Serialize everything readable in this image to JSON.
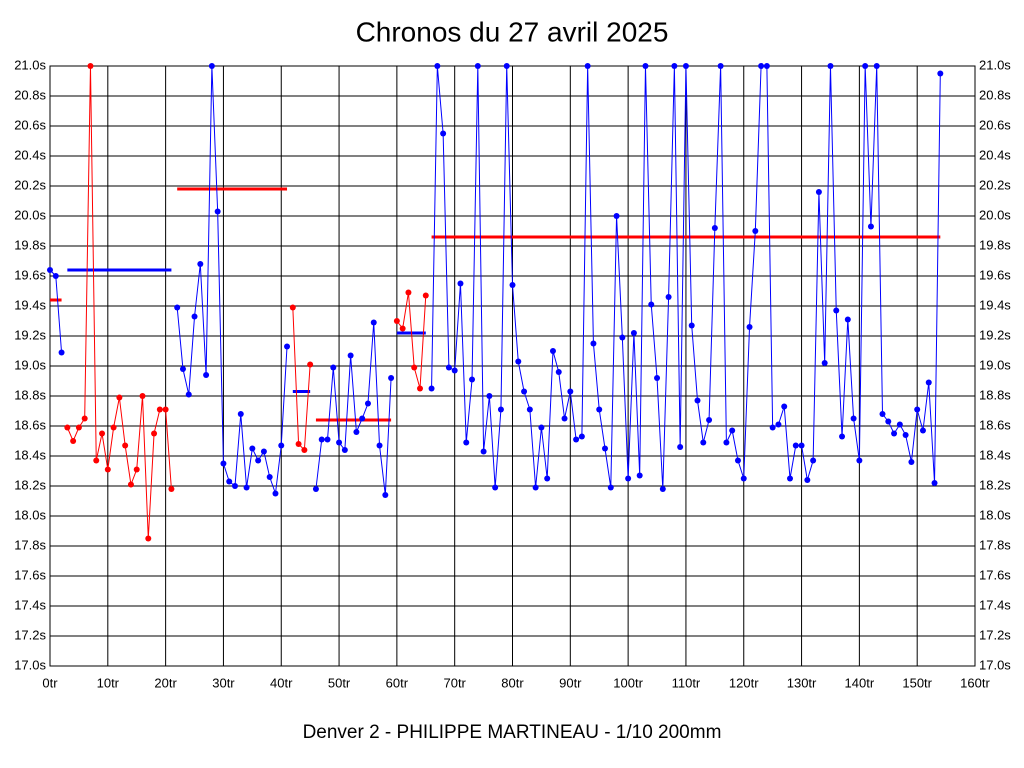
{
  "chart_data": {
    "type": "line",
    "title": "Chronos du 27 avril 2025",
    "xlabel": "Denver 2 - PHILIPPE MARTINEAU - 1/10 200mm",
    "xlim": [
      0,
      160
    ],
    "ylim": [
      17.0,
      21.0
    ],
    "grid": true,
    "xticks": [
      {
        "value": 0,
        "label": "0tr"
      },
      {
        "value": 10,
        "label": "10tr"
      },
      {
        "value": 20,
        "label": "20tr"
      },
      {
        "value": 30,
        "label": "30tr"
      },
      {
        "value": 40,
        "label": "40tr"
      },
      {
        "value": 50,
        "label": "50tr"
      },
      {
        "value": 60,
        "label": "60tr"
      },
      {
        "value": 70,
        "label": "70tr"
      },
      {
        "value": 80,
        "label": "80tr"
      },
      {
        "value": 90,
        "label": "90tr"
      },
      {
        "value": 100,
        "label": "100tr"
      },
      {
        "value": 110,
        "label": "110tr"
      },
      {
        "value": 120,
        "label": "120tr"
      },
      {
        "value": 130,
        "label": "130tr"
      },
      {
        "value": 140,
        "label": "140tr"
      },
      {
        "value": 150,
        "label": "150tr"
      },
      {
        "value": 160,
        "label": "160tr"
      }
    ],
    "yticks": [
      {
        "value": 17.0,
        "label": "17.0s"
      },
      {
        "value": 17.2,
        "label": "17.2s"
      },
      {
        "value": 17.4,
        "label": "17.4s"
      },
      {
        "value": 17.6,
        "label": "17.6s"
      },
      {
        "value": 17.8,
        "label": "17.8s"
      },
      {
        "value": 18.0,
        "label": "18.0s"
      },
      {
        "value": 18.2,
        "label": "18.2s"
      },
      {
        "value": 18.4,
        "label": "18.4s"
      },
      {
        "value": 18.6,
        "label": "18.6s"
      },
      {
        "value": 18.8,
        "label": "18.8s"
      },
      {
        "value": 19.0,
        "label": "19.0s"
      },
      {
        "value": 19.2,
        "label": "19.2s"
      },
      {
        "value": 19.4,
        "label": "19.4s"
      },
      {
        "value": 19.6,
        "label": "19.6s"
      },
      {
        "value": 19.8,
        "label": "19.8s"
      },
      {
        "value": 20.0,
        "label": "20.0s"
      },
      {
        "value": 20.2,
        "label": "20.2s"
      },
      {
        "value": 20.4,
        "label": "20.4s"
      },
      {
        "value": 20.6,
        "label": "20.6s"
      },
      {
        "value": 20.8,
        "label": "20.8s"
      },
      {
        "value": 21.0,
        "label": "21.0s"
      }
    ],
    "series": [
      {
        "color": "#0000ff",
        "x": [
          0,
          1,
          2
        ],
        "values": [
          19.64,
          19.6,
          19.09
        ]
      },
      {
        "color": "#ff0000",
        "x": [
          3,
          4,
          5,
          6,
          7,
          8,
          9,
          10,
          11,
          12,
          13,
          14,
          15,
          16,
          17,
          18,
          19,
          20,
          21
        ],
        "values": [
          18.59,
          18.5,
          18.59,
          18.65,
          21.0,
          18.37,
          18.55,
          18.31,
          18.59,
          18.79,
          18.47,
          18.21,
          18.31,
          18.8,
          17.85,
          18.55,
          18.71,
          18.71,
          18.18
        ]
      },
      {
        "color": "#0000ff",
        "x": [
          22,
          23,
          24,
          25,
          26,
          27,
          28,
          29,
          30,
          31,
          32,
          33,
          34,
          35,
          36,
          37,
          38,
          39,
          40,
          41
        ],
        "values": [
          19.39,
          18.98,
          18.81,
          19.33,
          19.68,
          18.94,
          21.0,
          20.03,
          18.35,
          18.23,
          18.2,
          18.68,
          18.19,
          18.45,
          18.37,
          18.43,
          18.26,
          18.15,
          18.47,
          19.13
        ]
      },
      {
        "color": "#ff0000",
        "x": [
          42,
          43,
          44,
          45
        ],
        "values": [
          19.39,
          18.48,
          18.44,
          19.01
        ]
      },
      {
        "color": "#0000ff",
        "x": [
          46,
          47,
          48,
          49,
          50,
          51,
          52,
          53,
          54,
          55,
          56,
          57,
          58,
          59
        ],
        "values": [
          18.18,
          18.51,
          18.51,
          18.99,
          18.49,
          18.44,
          19.07,
          18.56,
          18.65,
          18.75,
          19.29,
          18.47,
          18.14,
          18.92
        ]
      },
      {
        "color": "#ff0000",
        "x": [
          60,
          61,
          62,
          63,
          64,
          65
        ],
        "values": [
          19.3,
          19.25,
          19.49,
          18.99,
          18.85,
          19.47
        ]
      },
      {
        "color": "#0000ff",
        "x": [
          66,
          67,
          68,
          69,
          70,
          71,
          72,
          73,
          74,
          75,
          76,
          77,
          78,
          79,
          80,
          81,
          82,
          83,
          84,
          85,
          86,
          87,
          88,
          89,
          90,
          91,
          92,
          93,
          94,
          95,
          96,
          97,
          98,
          99,
          100,
          101,
          102,
          103,
          104,
          105,
          106,
          107,
          108,
          109,
          110,
          111,
          112,
          113,
          114,
          115,
          116,
          117,
          118,
          119,
          120,
          121,
          122,
          123,
          124,
          125,
          126,
          127,
          128,
          129,
          130,
          131,
          132,
          133,
          134,
          135,
          136,
          137,
          138,
          139,
          140,
          141,
          142,
          143,
          144,
          145,
          146,
          147,
          148,
          149,
          150,
          151,
          152,
          153,
          154
        ],
        "values": [
          18.85,
          21.0,
          20.55,
          18.99,
          18.97,
          19.55,
          18.49,
          18.91,
          21.0,
          18.43,
          18.8,
          18.19,
          18.71,
          21.0,
          19.54,
          19.03,
          18.83,
          18.71,
          18.19,
          18.59,
          18.25,
          19.1,
          18.96,
          18.65,
          18.83,
          18.51,
          18.53,
          21.0,
          19.15,
          18.71,
          18.45,
          18.19,
          20.0,
          19.19,
          18.25,
          19.22,
          18.27,
          21.0,
          19.41,
          18.92,
          18.18,
          19.46,
          21.0,
          18.46,
          21.0,
          19.27,
          18.77,
          18.49,
          18.64,
          19.92,
          21.0,
          18.49,
          18.57,
          18.37,
          18.25,
          19.26,
          19.9,
          21.0,
          21.0,
          18.59,
          18.61,
          18.73,
          18.25,
          18.47,
          18.47,
          18.24,
          18.37,
          20.16,
          19.02,
          21.0,
          19.37,
          18.53,
          19.31,
          18.65,
          18.37,
          21.0,
          19.93,
          21.0,
          18.68,
          18.63,
          18.55,
          18.61,
          18.54,
          18.36,
          18.71,
          18.57,
          18.89,
          18.22,
          20.95
        ]
      }
    ],
    "mean_lines": [
      {
        "x": [
          0,
          2
        ],
        "value": 19.44,
        "color": "#ff0000"
      },
      {
        "x": [
          3,
          21
        ],
        "value": 19.64,
        "color": "#0000ff"
      },
      {
        "x": [
          22,
          41
        ],
        "value": 20.18,
        "color": "#ff0000"
      },
      {
        "x": [
          42,
          45
        ],
        "value": 18.83,
        "color": "#0000ff"
      },
      {
        "x": [
          46,
          59
        ],
        "value": 18.64,
        "color": "#ff0000"
      },
      {
        "x": [
          60,
          65
        ],
        "value": 19.22,
        "color": "#0000ff"
      },
      {
        "x": [
          66,
          154
        ],
        "value": 19.86,
        "color": "#ff0000"
      }
    ]
  }
}
